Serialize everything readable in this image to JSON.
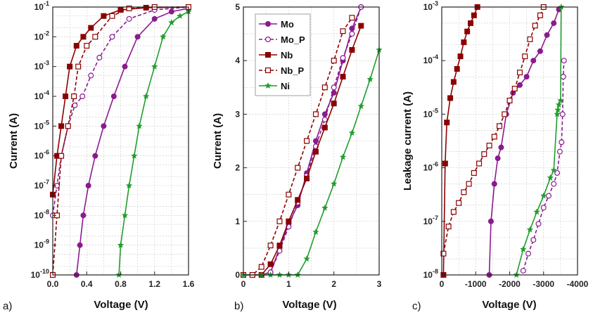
{
  "colors": {
    "Mo": "#8b1a8f",
    "Nb": "#8b0000",
    "Ni": "#1f9e2c"
  },
  "chart_data": [
    {
      "panel": "a)",
      "type": "line",
      "xlabel": "Voltage (V)",
      "ylabel": "Current (A)",
      "xlim": [
        0.0,
        1.6
      ],
      "ylim": [
        1e-10,
        0.1
      ],
      "yscale": "log",
      "xticks": [
        "0.0",
        "0.4",
        "0.8",
        "1.2",
        "1.6"
      ],
      "yticks": [
        "10^-10",
        "10^-9",
        "10^-8",
        "10^-7",
        "10^-6",
        "10^-5",
        "10^-4",
        "10^-3",
        "10^-2",
        "10^-1"
      ],
      "grid": true,
      "series": [
        {
          "name": "Mo",
          "dashed": false,
          "marker": "filled-circle",
          "x": [
            0.28,
            0.32,
            0.36,
            0.42,
            0.5,
            0.6,
            0.72,
            0.85,
            1.0,
            1.2,
            1.4,
            1.6
          ],
          "y": [
            1e-10,
            1e-09,
            1e-08,
            1e-07,
            1e-06,
            1e-05,
            0.0001,
            0.001,
            0.01,
            0.04,
            0.07,
            0.09
          ]
        },
        {
          "name": "Mo_P",
          "dashed": true,
          "marker": "open-circle",
          "x": [
            0.0,
            0.05,
            0.1,
            0.18,
            0.26,
            0.35,
            0.45,
            0.55,
            0.7,
            0.9,
            1.2,
            1.6
          ],
          "y": [
            1e-08,
            1e-07,
            1e-06,
            1e-05,
            5e-05,
            0.0001,
            0.0005,
            0.002,
            0.01,
            0.04,
            0.08,
            0.1
          ]
        },
        {
          "name": "Nb",
          "dashed": false,
          "marker": "filled-square",
          "x": [
            0.0,
            0.05,
            0.1,
            0.15,
            0.2,
            0.28,
            0.36,
            0.45,
            0.6,
            0.8,
            1.1,
            1.6
          ],
          "y": [
            5e-08,
            1e-06,
            1e-05,
            0.0001,
            0.001,
            0.005,
            0.01,
            0.02,
            0.05,
            0.08,
            0.095,
            0.1
          ]
        },
        {
          "name": "Nb_P",
          "dashed": true,
          "marker": "open-square",
          "x": [
            0.0,
            0.05,
            0.1,
            0.18,
            0.25,
            0.3,
            0.4,
            0.5,
            0.7,
            0.9,
            1.2,
            1.6
          ],
          "y": [
            1e-10,
            1e-08,
            1e-06,
            1e-05,
            0.0001,
            0.001,
            0.005,
            0.01,
            0.05,
            0.09,
            0.1,
            0.1
          ]
        },
        {
          "name": "Ni",
          "dashed": false,
          "marker": "star",
          "x": [
            0.78,
            0.8,
            0.85,
            0.9,
            0.96,
            1.02,
            1.1,
            1.2,
            1.3,
            1.4,
            1.5,
            1.6
          ],
          "y": [
            1e-10,
            1e-09,
            1e-08,
            1e-07,
            1e-06,
            1e-05,
            0.0001,
            0.001,
            0.01,
            0.03,
            0.05,
            0.07
          ]
        }
      ]
    },
    {
      "panel": "b)",
      "type": "line",
      "xlabel": "Voltage (V)",
      "ylabel": "Current (A)",
      "xlim": [
        0,
        3
      ],
      "ylim": [
        0,
        5
      ],
      "xticks": [
        "0",
        "1",
        "2",
        "3"
      ],
      "yticks": [
        "0",
        "1",
        "2",
        "3",
        "4",
        "5"
      ],
      "grid": true,
      "legend": "top-left",
      "series": [
        {
          "name": "Mo",
          "dashed": false,
          "marker": "filled-circle",
          "x": [
            0,
            0.2,
            0.4,
            0.6,
            0.8,
            1.0,
            1.2,
            1.4,
            1.6,
            1.8,
            2.0,
            2.2,
            2.4,
            2.6
          ],
          "y": [
            0,
            0,
            0,
            0.05,
            0.5,
            0.95,
            1.3,
            1.9,
            2.5,
            3.0,
            3.4,
            4.0,
            4.6,
            5.0
          ]
        },
        {
          "name": "Mo_P",
          "dashed": true,
          "marker": "open-circle",
          "x": [
            0,
            0.2,
            0.4,
            0.6,
            0.8,
            1.0,
            1.2,
            1.4,
            1.6,
            1.8,
            2.0,
            2.2,
            2.4,
            2.6
          ],
          "y": [
            0,
            0,
            0,
            0.05,
            0.45,
            0.9,
            1.35,
            1.85,
            2.4,
            2.9,
            3.5,
            4.05,
            4.5,
            5.0
          ]
        },
        {
          "name": "Nb",
          "dashed": false,
          "marker": "filled-square",
          "x": [
            0,
            0.2,
            0.4,
            0.6,
            0.8,
            1.0,
            1.2,
            1.4,
            1.6,
            1.8,
            2.0,
            2.2,
            2.4,
            2.6
          ],
          "y": [
            0,
            0,
            0,
            0.2,
            0.55,
            1.0,
            1.4,
            1.8,
            2.3,
            2.75,
            3.2,
            3.7,
            4.2,
            4.65
          ]
        },
        {
          "name": "Nb_P",
          "dashed": true,
          "marker": "open-square",
          "x": [
            0,
            0.2,
            0.4,
            0.6,
            0.8,
            1.0,
            1.2,
            1.4,
            1.6,
            1.8,
            2.0,
            2.2,
            2.4
          ],
          "y": [
            0,
            0,
            0.15,
            0.55,
            1.0,
            1.5,
            2.0,
            2.5,
            3.0,
            3.5,
            4.0,
            4.55,
            4.8
          ]
        },
        {
          "name": "Ni",
          "dashed": false,
          "marker": "star",
          "x": [
            0,
            0.4,
            0.6,
            0.8,
            1.0,
            1.2,
            1.4,
            1.6,
            1.8,
            2.0,
            2.2,
            2.4,
            2.6,
            2.8,
            3.0
          ],
          "y": [
            0,
            0,
            0,
            0,
            0,
            0,
            0.3,
            0.8,
            1.25,
            1.7,
            2.2,
            2.65,
            3.15,
            3.65,
            4.2
          ]
        }
      ]
    },
    {
      "panel": "c)",
      "type": "line",
      "xlabel": "Voltage (V)",
      "ylabel": "Leakage current (A)",
      "xlim": [
        0,
        -4000
      ],
      "ylim": [
        1e-08,
        0.001
      ],
      "yscale": "log",
      "xticks": [
        "0",
        "-1000",
        "-2000",
        "-3000",
        "-4000"
      ],
      "yticks": [
        "10^-8",
        "10^-7",
        "10^-6",
        "10^-5",
        "10^-4",
        "10^-3"
      ],
      "grid": true,
      "series": [
        {
          "name": "Mo",
          "dashed": false,
          "marker": "filled-circle",
          "x": [
            -1400,
            -1450,
            -1550,
            -1650,
            -1750,
            -1900,
            -2100,
            -2300,
            -2500,
            -2700,
            -2900,
            -3100,
            -3300,
            -3450
          ],
          "y": [
            1e-08,
            1e-07,
            5e-07,
            1.5e-06,
            2.4e-06,
            1e-05,
            2.5e-05,
            3.5e-05,
            5e-05,
            0.0001,
            0.00015,
            0.0003,
            0.0005,
            0.0009
          ]
        },
        {
          "name": "Mo_P",
          "dashed": true,
          "marker": "open-circle",
          "x": [
            -2400,
            -2550,
            -2700,
            -2850,
            -3000,
            -3150,
            -3300,
            -3400,
            -3480,
            -3530,
            -3560,
            -3580,
            -3600
          ],
          "y": [
            1.2e-08,
            2.5e-08,
            4.5e-08,
            9e-08,
            1.8e-07,
            3e-07,
            5e-07,
            8e-07,
            2e-06,
            3e-06,
            1e-05,
            5e-05,
            0.0001
          ]
        },
        {
          "name": "Nb",
          "dashed": false,
          "marker": "filled-square",
          "x": [
            -50,
            -100,
            -150,
            -250,
            -350,
            -450,
            -550,
            -650,
            -750,
            -850,
            -950,
            -1050
          ],
          "y": [
            1e-08,
            1.2e-06,
            7e-06,
            2e-05,
            4e-05,
            7e-05,
            0.00012,
            0.00022,
            0.00035,
            0.0005,
            0.0007,
            0.001
          ]
        },
        {
          "name": "Nb_P",
          "dashed": true,
          "marker": "open-square",
          "x": [
            -50,
            -200,
            -350,
            -500,
            -650,
            -800,
            -950,
            -1100,
            -1250,
            -1400,
            -1550,
            -1700,
            -1850,
            -2000,
            -2150,
            -2300,
            -2450,
            -2600,
            -2750,
            -2900,
            -3000
          ],
          "y": [
            2.5e-08,
            8e-08,
            1.5e-07,
            2.2e-07,
            3.5e-07,
            5e-07,
            8e-07,
            1.2e-06,
            1.8e-06,
            2.6e-06,
            3.8e-06,
            6e-06,
            1e-05,
            1.8e-05,
            3e-05,
            6e-05,
            0.00012,
            0.00025,
            0.00045,
            0.0007,
            0.001
          ]
        },
        {
          "name": "Ni",
          "dashed": false,
          "marker": "star",
          "x": [
            -2200,
            -2400,
            -2600,
            -2800,
            -3000,
            -3200,
            -3300,
            -3400,
            -3420,
            -3450,
            -3500,
            -3520
          ],
          "y": [
            1e-08,
            3e-08,
            7e-08,
            1.5e-07,
            3e-07,
            6.5e-07,
            9e-07,
            1e-05,
            1.2e-05,
            1.5e-05,
            1.8e-05,
            0.001
          ]
        }
      ]
    }
  ]
}
